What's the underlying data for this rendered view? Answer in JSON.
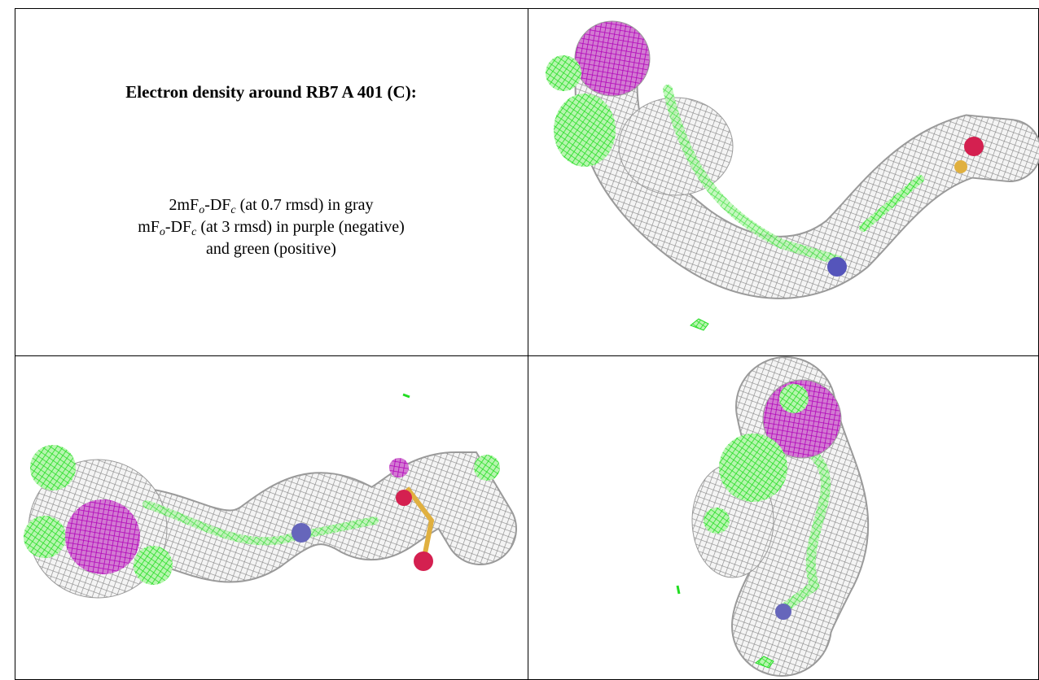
{
  "caption": {
    "title": "Electron density around RB7 A 401 (C):",
    "lines": [
      [
        "2mF",
        "o",
        "-DF",
        "c",
        " (at 0.7 rmsd) in gray"
      ],
      [
        "mF",
        "o",
        "-DF",
        "c",
        " (at 3 rmsd) in purple (negative)"
      ],
      [
        "and green (positive)"
      ]
    ]
  }
}
